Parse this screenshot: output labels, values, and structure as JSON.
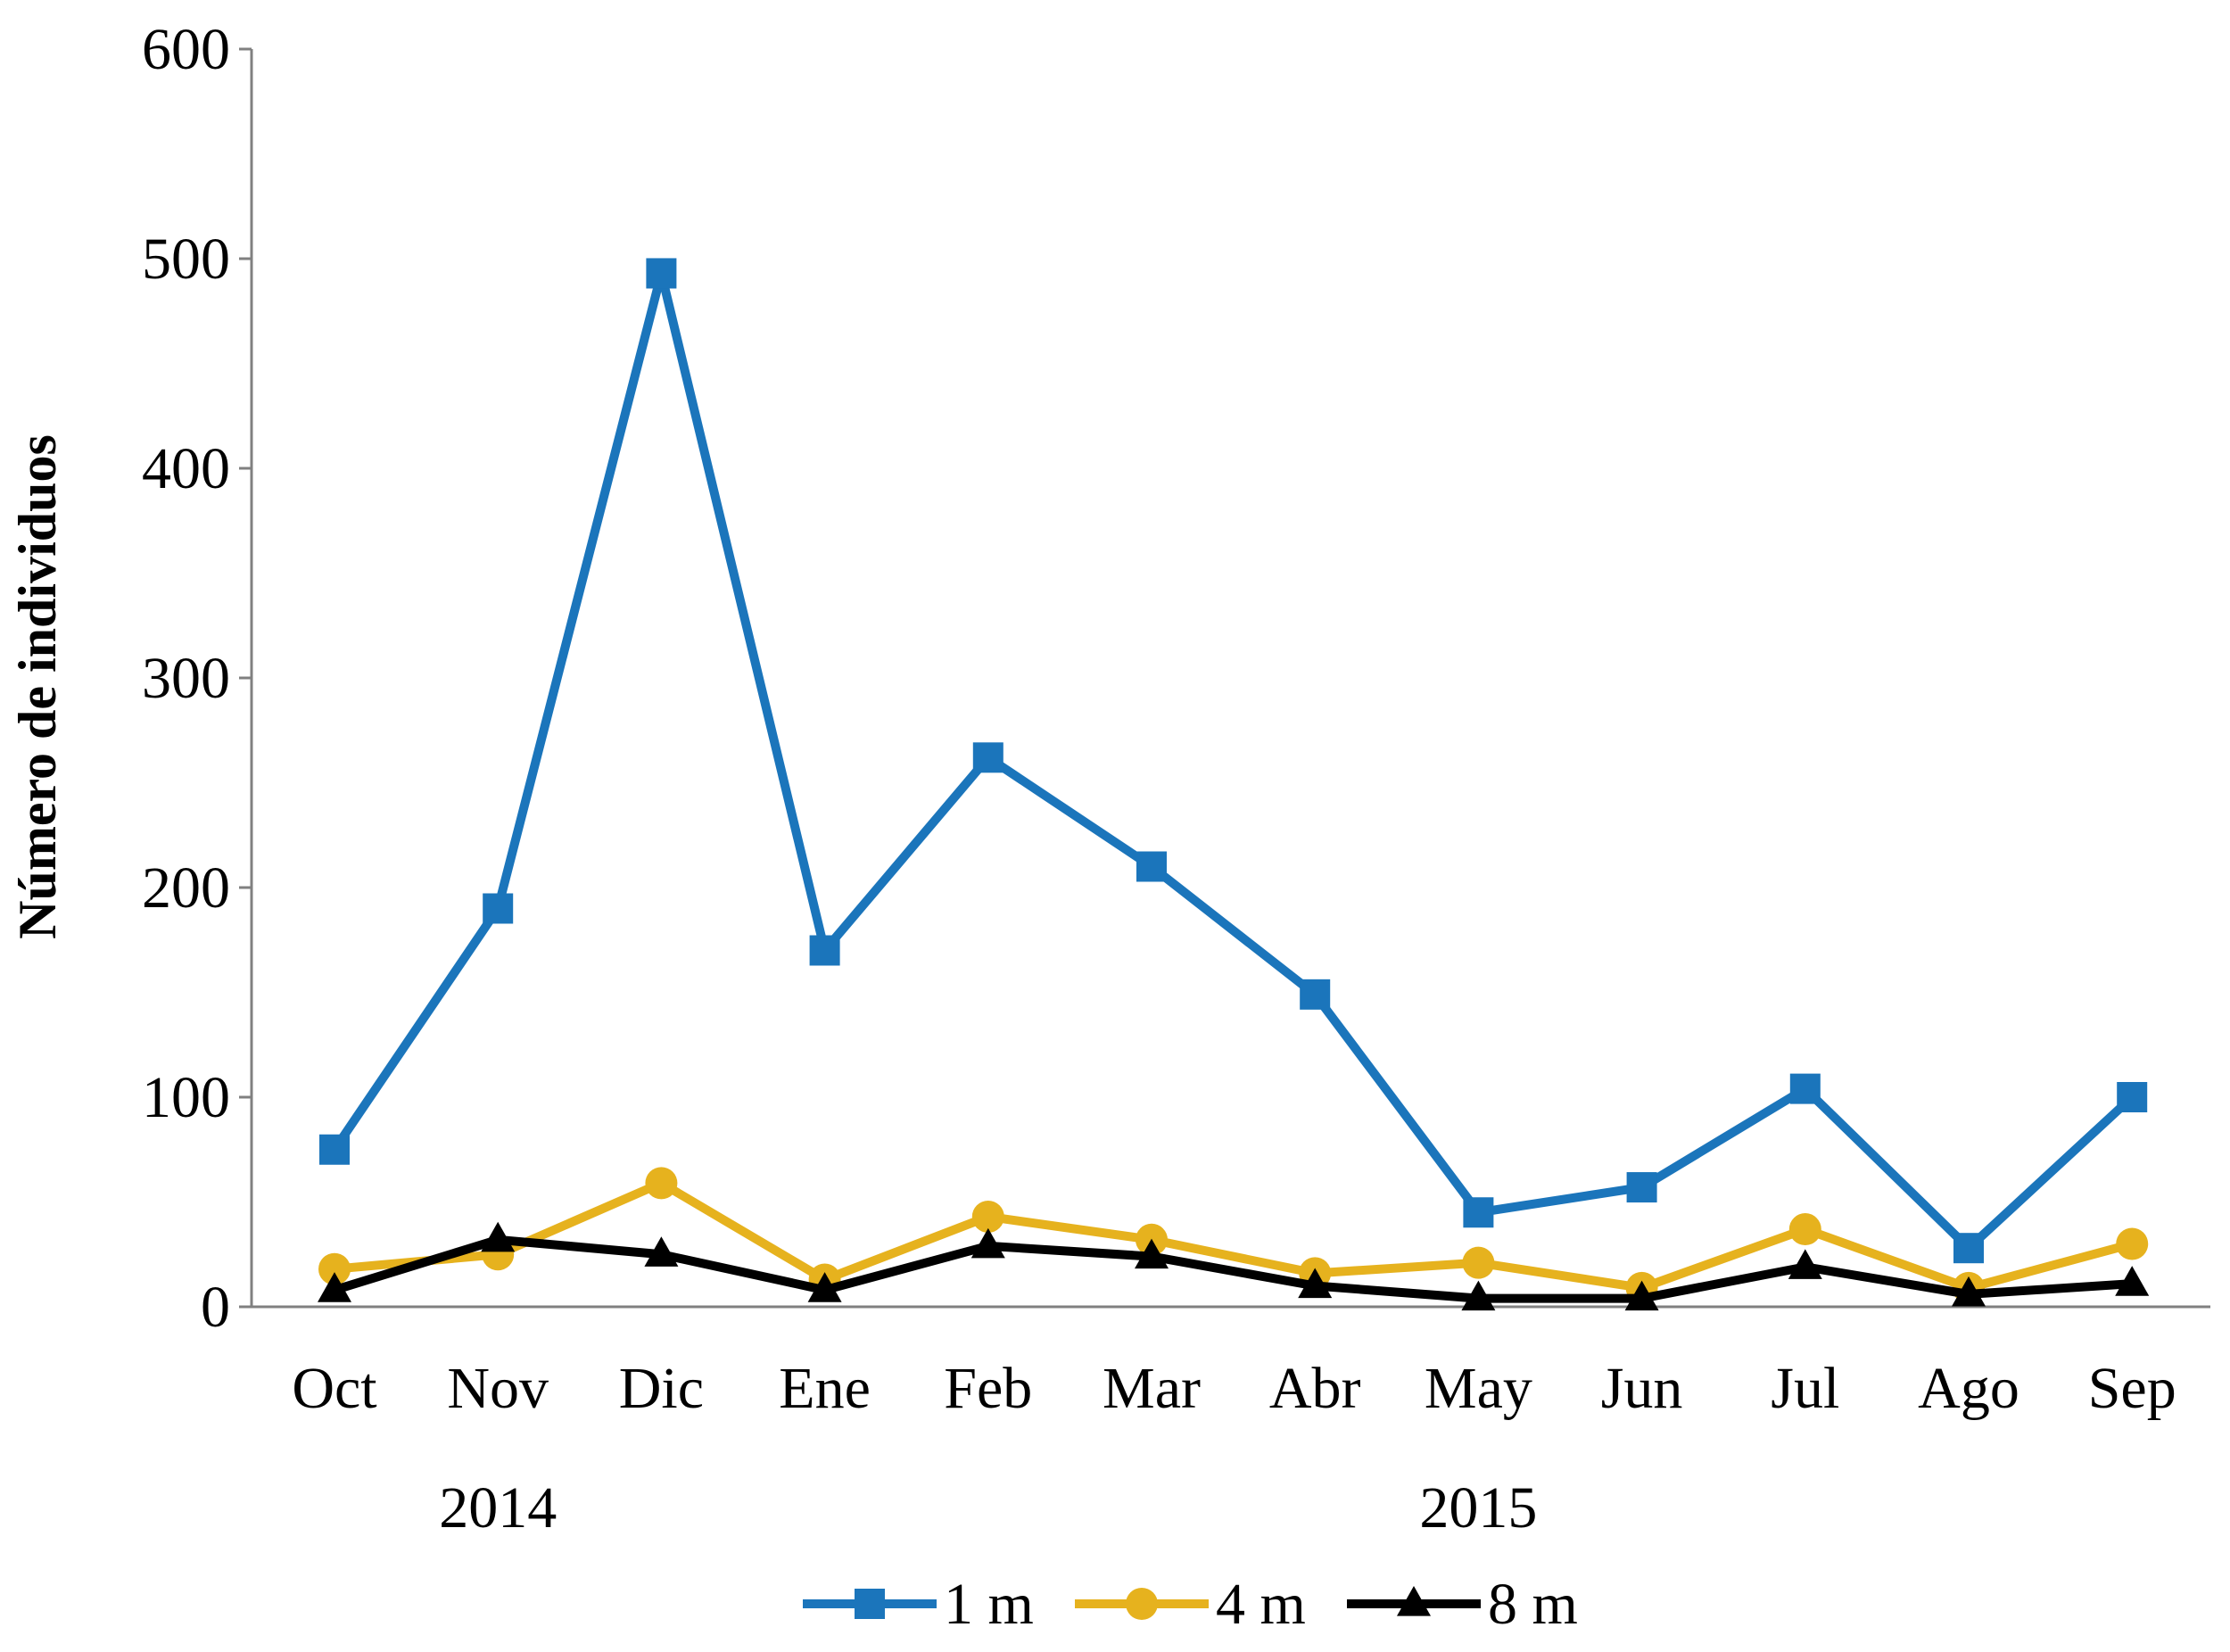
{
  "chart_data": {
    "type": "line",
    "title": "",
    "xlabel": "",
    "ylabel": "Número de individuos",
    "ylim": [
      0,
      600
    ],
    "yticks": [
      0,
      100,
      200,
      300,
      400,
      500,
      600
    ],
    "categories": [
      "Oct",
      "Nov",
      "Dic",
      "Ene",
      "Feb",
      "Mar",
      "Abr",
      "May",
      "Jun",
      "Jul",
      "Ago",
      "Sep"
    ],
    "year_labels": [
      {
        "label": "2014",
        "category": "Nov"
      },
      {
        "label": "2015",
        "category": "May"
      }
    ],
    "grid": false,
    "legend_position": "bottom",
    "series": [
      {
        "name": "1 m",
        "color": "#1b75bb",
        "marker": "square",
        "values": [
          75,
          190,
          493,
          170,
          262,
          210,
          149,
          45,
          57,
          104,
          28,
          100
        ]
      },
      {
        "name": "4 m",
        "color": "#e6b21e",
        "marker": "circle",
        "values": [
          18,
          25,
          59,
          13,
          43,
          32,
          16,
          21,
          9,
          37,
          9,
          30
        ]
      },
      {
        "name": "8 m",
        "color": "#000000",
        "marker": "triangle",
        "values": [
          8,
          32,
          25,
          8,
          29,
          24,
          10,
          4,
          4,
          19,
          6,
          11
        ]
      }
    ]
  }
}
